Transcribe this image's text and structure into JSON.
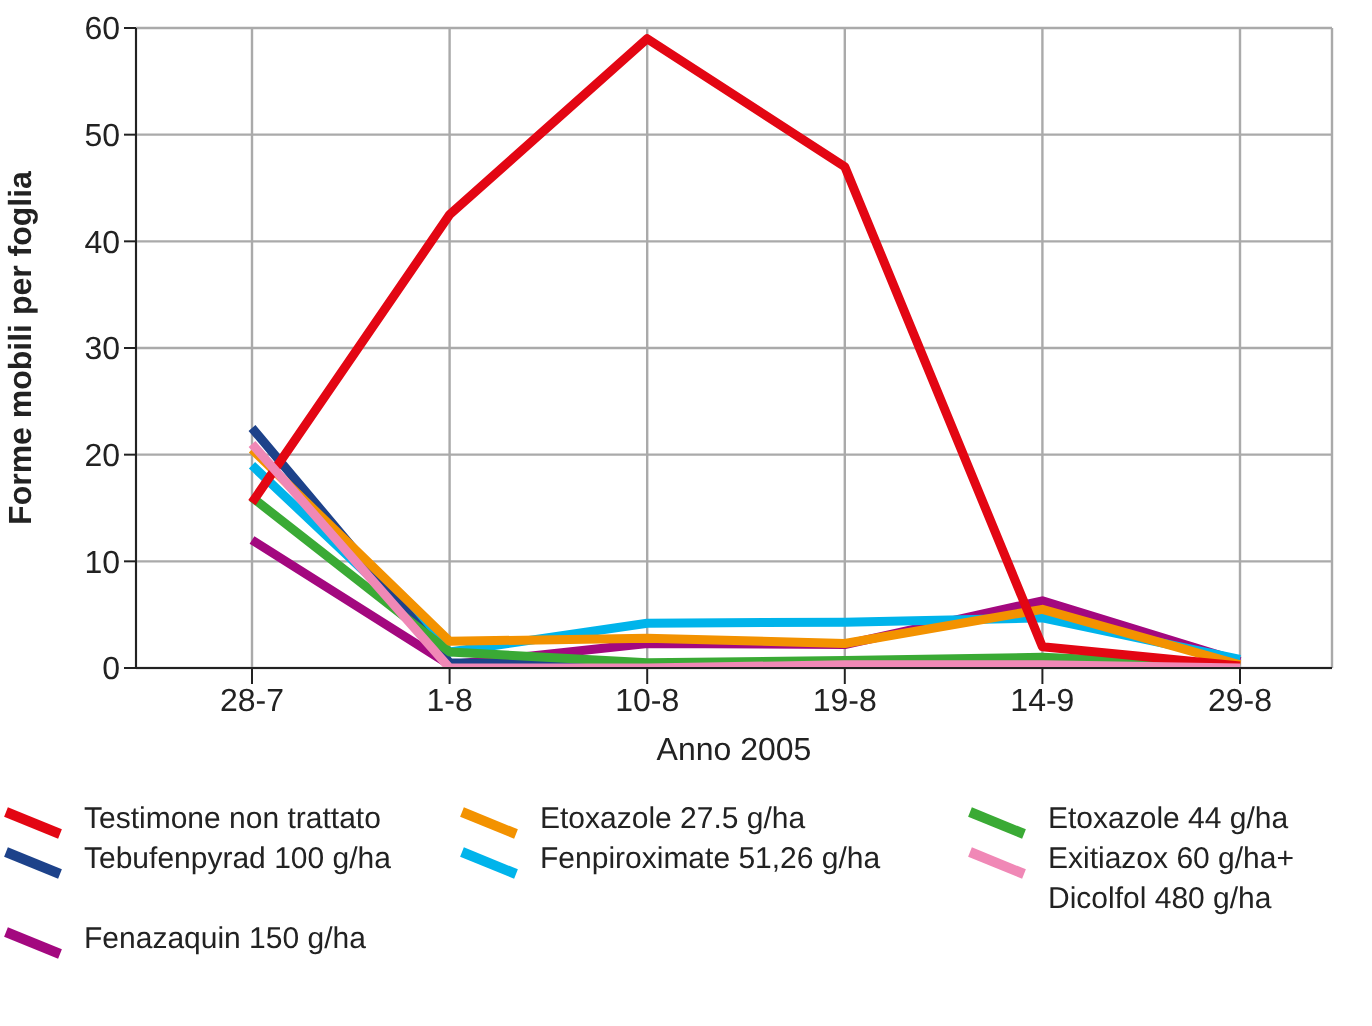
{
  "chart_data": {
    "type": "line",
    "xlabel": "Anno 2005",
    "ylabel": "Forme mobili per foglia",
    "categories": [
      "28-7",
      "1-8",
      "10-8",
      "19-8",
      "14-9",
      "29-8"
    ],
    "ylim": [
      0,
      60
    ],
    "yticks": [
      0,
      10,
      20,
      30,
      40,
      50,
      60
    ],
    "grid": true,
    "legend": "bottom",
    "marker": "none",
    "line_style": "solid",
    "series": [
      {
        "name": "Testimone non trattato",
        "color": "#e30613",
        "values": [
          15.5,
          42.5,
          59,
          47,
          2,
          0.2
        ]
      },
      {
        "name": "Etoxazole 27.5 g/ha",
        "color": "#f39200",
        "values": [
          20.5,
          2.5,
          2.8,
          2.3,
          5.5,
          0.3
        ]
      },
      {
        "name": "Etoxazole 44 g/ha",
        "color": "#3aaa35",
        "values": [
          16,
          1.5,
          0.5,
          0.7,
          1,
          0.2
        ]
      },
      {
        "name": "Tebufenpyrad 100 g/ha",
        "color": "#1d428a",
        "values": [
          22.5,
          0.5,
          0.2,
          0.3,
          null,
          null
        ]
      },
      {
        "name": "Fenpiroximate 51,26 g/ha",
        "color": "#00b4eb",
        "values": [
          19,
          1.5,
          4.2,
          4.3,
          4.7,
          0.8
        ]
      },
      {
        "name": "Exitiazox 60 g/ha+ Dicolfol 480 g/ha",
        "color": "#f088b6",
        "values": [
          21,
          0,
          0,
          0.3,
          0.3,
          0
        ]
      },
      {
        "name": "Fenazaquin 150 g/ha",
        "color": "#a3087f",
        "values": [
          12,
          0.3,
          2.3,
          2.2,
          6.3,
          0.6
        ]
      }
    ]
  }
}
